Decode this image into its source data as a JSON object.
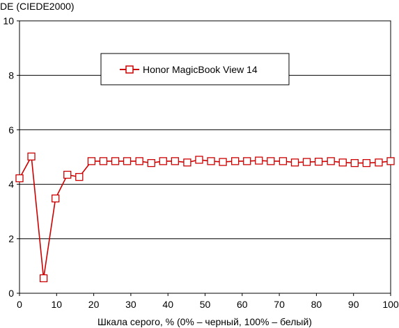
{
  "chart_data": {
    "type": "line",
    "ylabel": "DE (CIEDE2000)",
    "xlabel": "Шкала серого, % (0% – черный, 100% – белый)",
    "xlim": [
      0,
      100
    ],
    "ylim": [
      0,
      10
    ],
    "xticks": [
      "0",
      "10",
      "20",
      "30",
      "40",
      "50",
      "60",
      "70",
      "80",
      "90",
      "100"
    ],
    "yticks": [
      "0",
      "2",
      "4",
      "6",
      "8",
      "10"
    ],
    "grid": "horizontal",
    "legend_position": "top-center",
    "series": [
      {
        "name": "Honor MagicBook View 14",
        "color": "#cc0000",
        "marker": "square",
        "x": [
          0,
          3.2,
          6.5,
          9.7,
          12.9,
          16.1,
          19.4,
          22.6,
          25.8,
          29.0,
          32.3,
          35.5,
          38.7,
          41.9,
          45.2,
          48.4,
          51.6,
          54.8,
          58.1,
          61.3,
          64.5,
          67.7,
          71.0,
          74.2,
          77.4,
          80.6,
          83.9,
          87.1,
          90.3,
          93.5,
          96.8,
          100
        ],
        "y": [
          4.22,
          5.02,
          0.55,
          3.48,
          4.35,
          4.27,
          4.85,
          4.85,
          4.85,
          4.85,
          4.85,
          4.78,
          4.85,
          4.85,
          4.8,
          4.9,
          4.85,
          4.82,
          4.85,
          4.85,
          4.87,
          4.85,
          4.85,
          4.8,
          4.82,
          4.83,
          4.85,
          4.8,
          4.78,
          4.78,
          4.8,
          4.85
        ]
      }
    ]
  }
}
